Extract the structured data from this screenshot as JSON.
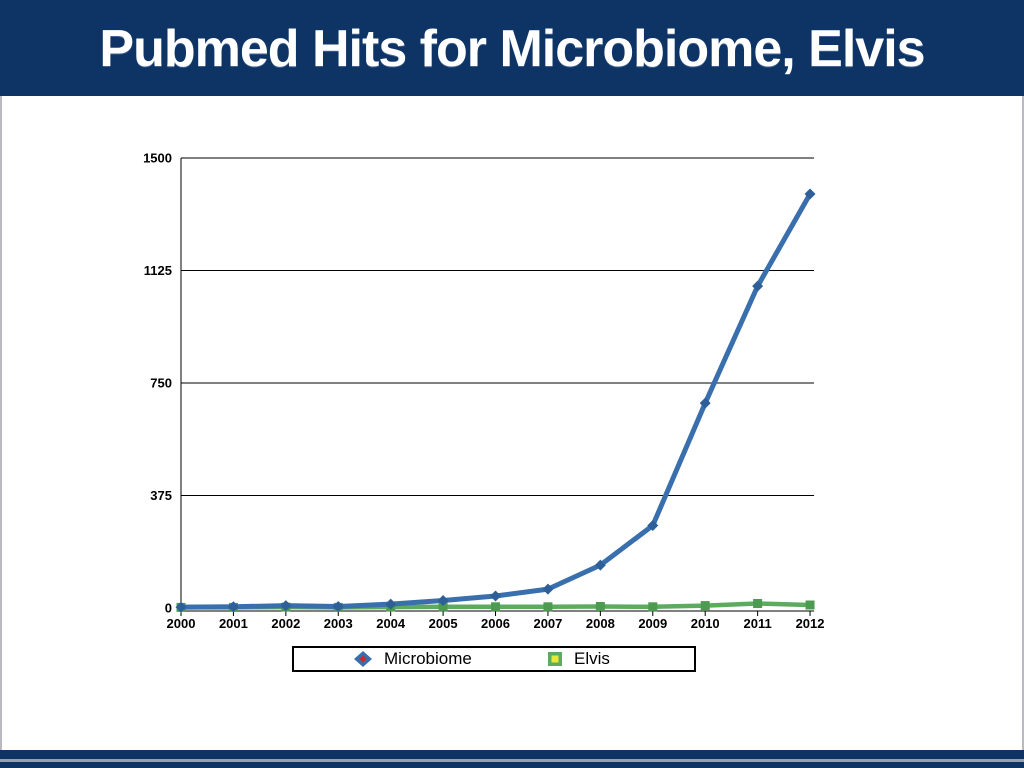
{
  "slide": {
    "title": "Pubmed Hits for Microbiome, Elvis"
  },
  "theme": {
    "header_bg": "#0e3466",
    "title_color": "#ffffff",
    "axis_color": "#000000",
    "microbiome_line": "#3a6fad",
    "microbiome_marker": "#2f5f98",
    "microbiome_legend_accent": "#cc2a2a",
    "elvis_line": "#5cab5e",
    "elvis_marker": "#4d9b50",
    "elvis_legend_accent": "#e8e83a",
    "footer_divider": "#93a1b0",
    "edge_line": "#b9b9c2"
  },
  "chart_data": {
    "type": "line",
    "title": "",
    "xlabel": "",
    "ylabel": "",
    "categories": [
      "2000",
      "2001",
      "2002",
      "2003",
      "2004",
      "2005",
      "2006",
      "2007",
      "2008",
      "2009",
      "2010",
      "2011",
      "2012"
    ],
    "series": [
      {
        "name": "Microbiome",
        "marker": "diamond",
        "color": "#3a6fad",
        "values": [
          3,
          4,
          8,
          5,
          13,
          25,
          40,
          63,
          143,
          275,
          683,
          1073,
          1380
        ]
      },
      {
        "name": "Elvis",
        "marker": "square",
        "color": "#5cab5e",
        "values": [
          2,
          2,
          3,
          2,
          3,
          4,
          4,
          4,
          5,
          4,
          8,
          15,
          10
        ]
      }
    ],
    "ylim": [
      0,
      1500
    ],
    "yticks": [
      0,
      375,
      750,
      1125,
      1500
    ],
    "grid": "horizontal",
    "legend_position": "bottom"
  }
}
